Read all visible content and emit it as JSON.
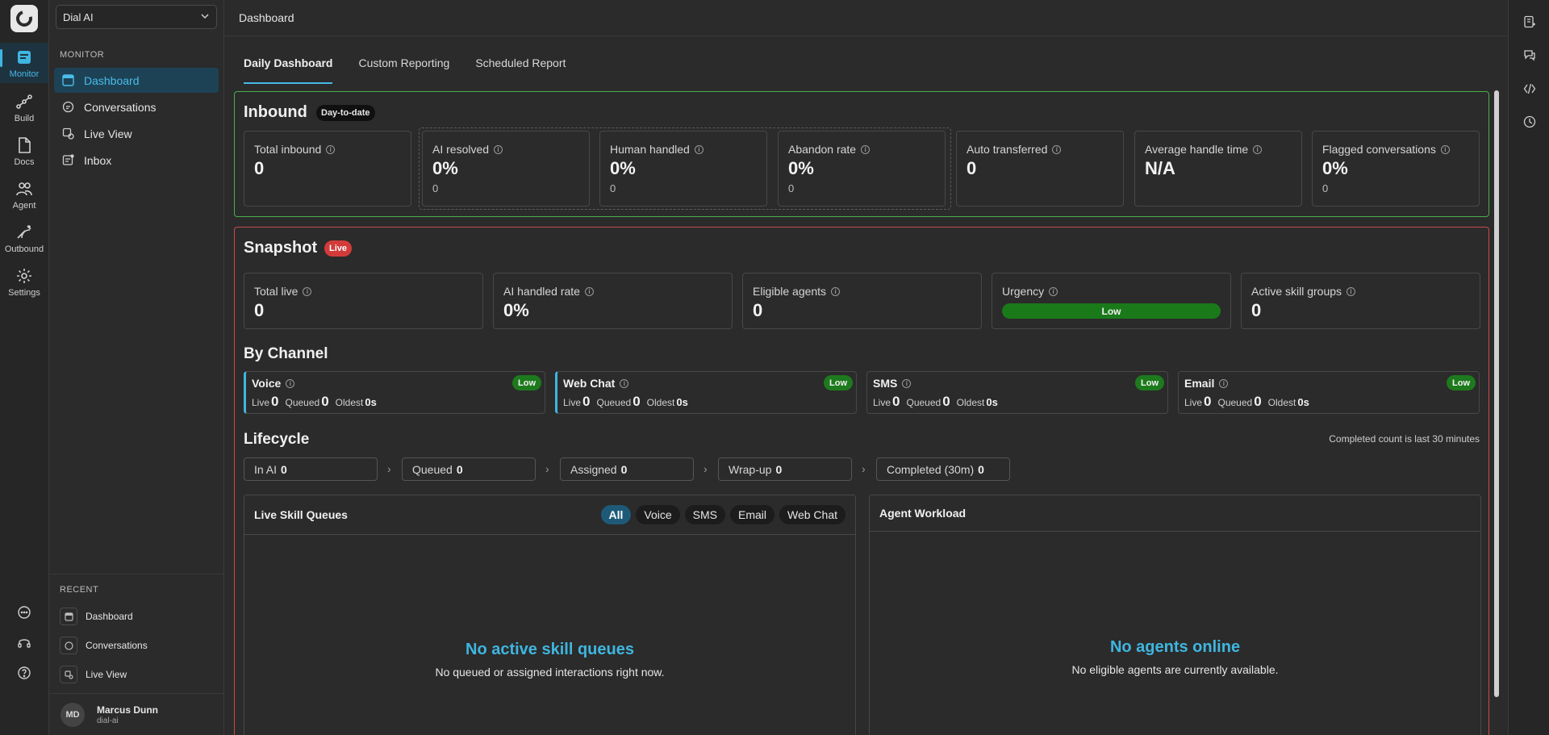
{
  "rail": {
    "items": [
      {
        "label": "Monitor",
        "icon": "monitor-icon"
      },
      {
        "label": "Build",
        "icon": "build-icon"
      },
      {
        "label": "Docs",
        "icon": "docs-icon"
      },
      {
        "label": "Agent",
        "icon": "agent-icon"
      },
      {
        "label": "Outbound",
        "icon": "outbound-icon"
      },
      {
        "label": "Settings",
        "icon": "gear-icon"
      }
    ]
  },
  "side": {
    "org": "Dial AI",
    "section": "MONITOR",
    "items": [
      {
        "label": "Dashboard"
      },
      {
        "label": "Conversations"
      },
      {
        "label": "Live View"
      },
      {
        "label": "Inbox"
      }
    ],
    "recent_label": "RECENT",
    "recent": [
      {
        "label": "Dashboard"
      },
      {
        "label": "Conversations"
      },
      {
        "label": "Live View"
      }
    ],
    "user": {
      "initials": "MD",
      "name": "Marcus Dunn",
      "org": "dial-ai"
    }
  },
  "main": {
    "title": "Dashboard",
    "tabs": [
      {
        "label": "Daily Dashboard"
      },
      {
        "label": "Custom Reporting"
      },
      {
        "label": "Scheduled Report"
      }
    ],
    "inbound": {
      "title": "Inbound",
      "badge": "Day-to-date",
      "cards": [
        {
          "label": "Total inbound",
          "value": "0"
        },
        {
          "label": "AI resolved",
          "value": "0%",
          "sub": "0"
        },
        {
          "label": "Human handled",
          "value": "0%",
          "sub": "0"
        },
        {
          "label": "Abandon rate",
          "value": "0%",
          "sub": "0"
        },
        {
          "label": "Auto transferred",
          "value": "0"
        },
        {
          "label": "Average handle time",
          "value": "N/A"
        },
        {
          "label": "Flagged conversations",
          "value": "0%",
          "sub": "0"
        }
      ]
    },
    "snapshot": {
      "title": "Snapshot",
      "badge": "Live",
      "cards": [
        {
          "label": "Total live",
          "value": "0"
        },
        {
          "label": "AI handled rate",
          "value": "0%"
        },
        {
          "label": "Eligible agents",
          "value": "0"
        },
        {
          "label": "Urgency",
          "value": "Low"
        },
        {
          "label": "Active skill groups",
          "value": "0"
        }
      ]
    },
    "by_channel": {
      "title": "By Channel",
      "stat_labels": {
        "live": "Live",
        "queued": "Queued",
        "oldest": "Oldest"
      },
      "channels": [
        {
          "name": "Voice",
          "level": "Low",
          "live": "0",
          "queued": "0",
          "oldest": "0s"
        },
        {
          "name": "Web Chat",
          "level": "Low",
          "live": "0",
          "queued": "0",
          "oldest": "0s"
        },
        {
          "name": "SMS",
          "level": "Low",
          "live": "0",
          "queued": "0",
          "oldest": "0s"
        },
        {
          "name": "Email",
          "level": "Low",
          "live": "0",
          "queued": "0",
          "oldest": "0s"
        }
      ]
    },
    "lifecycle": {
      "title": "Lifecycle",
      "note": "Completed count is last 30 minutes",
      "stages": [
        {
          "label": "In AI",
          "value": "0"
        },
        {
          "label": "Queued",
          "value": "0"
        },
        {
          "label": "Assigned",
          "value": "0"
        },
        {
          "label": "Wrap-up",
          "value": "0"
        },
        {
          "label": "Completed (30m)",
          "value": "0"
        }
      ]
    },
    "queues": {
      "title": "Live Skill Queues",
      "filters": [
        "All",
        "Voice",
        "SMS",
        "Email",
        "Web Chat"
      ],
      "empty_title": "No active skill queues",
      "empty_sub": "No queued or assigned interactions right now."
    },
    "workload": {
      "title": "Agent Workload",
      "empty_title": "No agents online",
      "empty_sub": "No eligible agents are currently available."
    }
  },
  "colors": {
    "accent": "#3fb6e0",
    "inbound_border": "#4cae4c",
    "snapshot_border": "#c94a4a",
    "low": "#1d7a1d"
  }
}
